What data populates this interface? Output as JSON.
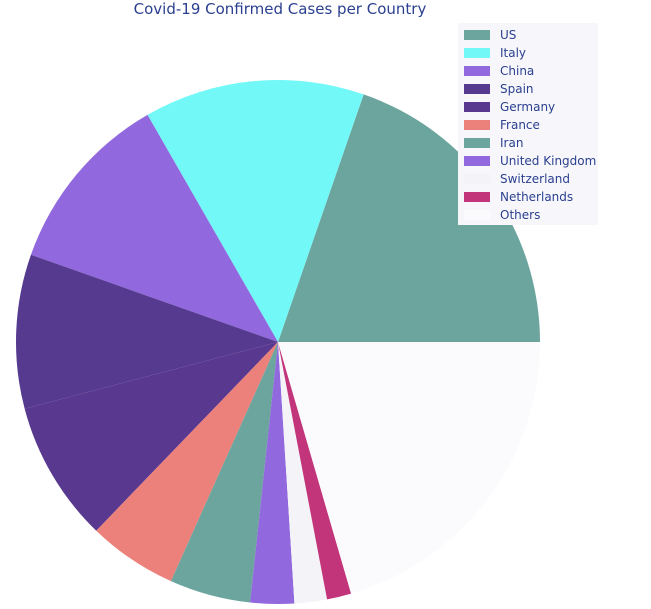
{
  "chart_data": {
    "type": "pie",
    "title": "Covid-19 Confirmed Cases per Country",
    "categories": [
      "US",
      "Italy",
      "China",
      "Spain",
      "Germany",
      "France",
      "Iran",
      "United Kingdom",
      "Switzerland",
      "Netherlands",
      "Others"
    ],
    "values": [
      19.7,
      13.6,
      11.3,
      9.5,
      8.7,
      5.5,
      5.0,
      2.7,
      2.0,
      1.5,
      20.5
    ],
    "colors": [
      "#6ba59d",
      "#73f8f8",
      "#9168dd",
      "#553a8f",
      "#59388f",
      "#ec807a",
      "#6ba59d",
      "#9168dd",
      "#f4f4f8",
      "#c2357b",
      "#fbfbfd"
    ],
    "legend_position": "top-right",
    "start_angle_deg": 0,
    "direction": "counterclockwise"
  }
}
